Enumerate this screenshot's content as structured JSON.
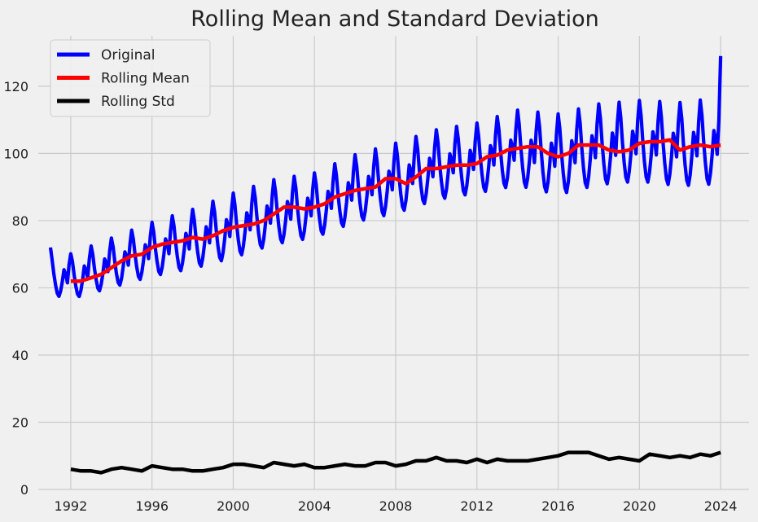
{
  "chart_data": {
    "type": "line",
    "title": "Rolling Mean and Standard Deviation",
    "xlabel": "",
    "ylabel": "",
    "xlim": [
      1990.4,
      2025.4
    ],
    "ylim": [
      0,
      135
    ],
    "x_ticks": [
      1992,
      1996,
      2000,
      2004,
      2008,
      2012,
      2016,
      2020,
      2024
    ],
    "y_ticks": [
      0,
      20,
      40,
      60,
      80,
      100,
      120
    ],
    "grid": true,
    "legend_position": "top-left",
    "series": [
      {
        "name": "Original",
        "color": "#0000ff",
        "x_start": 1991.0,
        "step_years": 0.0833333,
        "trend_anchors": [
          [
            1991,
            64
          ],
          [
            1992,
            63
          ],
          [
            1994,
            67
          ],
          [
            1996,
            71
          ],
          [
            1998,
            74
          ],
          [
            2000,
            78
          ],
          [
            2002,
            82
          ],
          [
            2004,
            84
          ],
          [
            2006,
            89
          ],
          [
            2008,
            92
          ],
          [
            2010,
            96
          ],
          [
            2012,
            98
          ],
          [
            2014,
            101
          ],
          [
            2016,
            99
          ],
          [
            2018,
            102
          ],
          [
            2020,
            103
          ],
          [
            2022,
            102
          ],
          [
            2024,
            103
          ]
        ],
        "amplitude_anchors": [
          [
            1991,
            8
          ],
          [
            1996,
            10
          ],
          [
            2000,
            12
          ],
          [
            2004,
            12
          ],
          [
            2008,
            13
          ],
          [
            2012,
            13
          ],
          [
            2016,
            15
          ],
          [
            2020,
            15
          ],
          [
            2024,
            16
          ]
        ],
        "start_value": 72,
        "end_value": 129
      },
      {
        "name": "Rolling Mean",
        "color": "#ff0000",
        "x": [
          1992.0,
          1992.5,
          1993.0,
          1993.5,
          1994.0,
          1994.5,
          1995.0,
          1995.5,
          1996.0,
          1996.5,
          1997.0,
          1997.5,
          1998.0,
          1998.5,
          1999.0,
          1999.5,
          2000.0,
          2000.5,
          2001.0,
          2001.5,
          2002.0,
          2002.5,
          2003.0,
          2003.5,
          2004.0,
          2004.5,
          2005.0,
          2005.5,
          2006.0,
          2006.5,
          2007.0,
          2007.5,
          2008.0,
          2008.5,
          2009.0,
          2009.5,
          2010.0,
          2010.5,
          2011.0,
          2011.5,
          2012.0,
          2012.5,
          2013.0,
          2013.5,
          2014.0,
          2014.5,
          2015.0,
          2015.5,
          2016.0,
          2016.5,
          2017.0,
          2017.5,
          2018.0,
          2018.5,
          2019.0,
          2019.5,
          2020.0,
          2020.5,
          2021.0,
          2021.5,
          2022.0,
          2022.5,
          2023.0,
          2023.5,
          2024.0
        ],
        "values": [
          62,
          62,
          63,
          64,
          66,
          68,
          69.5,
          70,
          72,
          73,
          73.5,
          74,
          75,
          74.5,
          75.5,
          77,
          78,
          78.5,
          79,
          80,
          82,
          84,
          84,
          83.5,
          84,
          85,
          87,
          88,
          89,
          89.5,
          90,
          92.5,
          92.5,
          91,
          93,
          95.5,
          95.5,
          96,
          96.5,
          96.5,
          97,
          99,
          99.5,
          101,
          101.5,
          102,
          102,
          100,
          99,
          100,
          102.5,
          102.5,
          102.5,
          101,
          100.5,
          101,
          103,
          103.5,
          103.5,
          104,
          101,
          102,
          102.5,
          102,
          102.5
        ]
      },
      {
        "name": "Rolling Std",
        "color": "#000000",
        "x": [
          1992.0,
          1992.5,
          1993.0,
          1993.5,
          1994.0,
          1994.5,
          1995.0,
          1995.5,
          1996.0,
          1996.5,
          1997.0,
          1997.5,
          1998.0,
          1998.5,
          1999.0,
          1999.5,
          2000.0,
          2000.5,
          2001.0,
          2001.5,
          2002.0,
          2002.5,
          2003.0,
          2003.5,
          2004.0,
          2004.5,
          2005.0,
          2005.5,
          2006.0,
          2006.5,
          2007.0,
          2007.5,
          2008.0,
          2008.5,
          2009.0,
          2009.5,
          2010.0,
          2010.5,
          2011.0,
          2011.5,
          2012.0,
          2012.5,
          2013.0,
          2013.5,
          2014.0,
          2014.5,
          2015.0,
          2015.5,
          2016.0,
          2016.5,
          2017.0,
          2017.5,
          2018.0,
          2018.5,
          2019.0,
          2019.5,
          2020.0,
          2020.5,
          2021.0,
          2021.5,
          2022.0,
          2022.5,
          2023.0,
          2023.5,
          2024.0
        ],
        "values": [
          6,
          5.5,
          5.5,
          5,
          6,
          6.5,
          6,
          5.5,
          7,
          6.5,
          6,
          6,
          5.5,
          5.5,
          6,
          6.5,
          7.5,
          7.5,
          7,
          6.5,
          8,
          7.5,
          7,
          7.5,
          6.5,
          6.5,
          7,
          7.5,
          7,
          7,
          8,
          8,
          7,
          7.5,
          8.5,
          8.5,
          9.5,
          8.5,
          8.5,
          8,
          9,
          8,
          9,
          8.5,
          8.5,
          8.5,
          9,
          9.5,
          10,
          11,
          11,
          11,
          10,
          9,
          9.5,
          9,
          8.5,
          10.5,
          10,
          9.5,
          10,
          9.5,
          10.5,
          10,
          11
        ]
      }
    ]
  }
}
